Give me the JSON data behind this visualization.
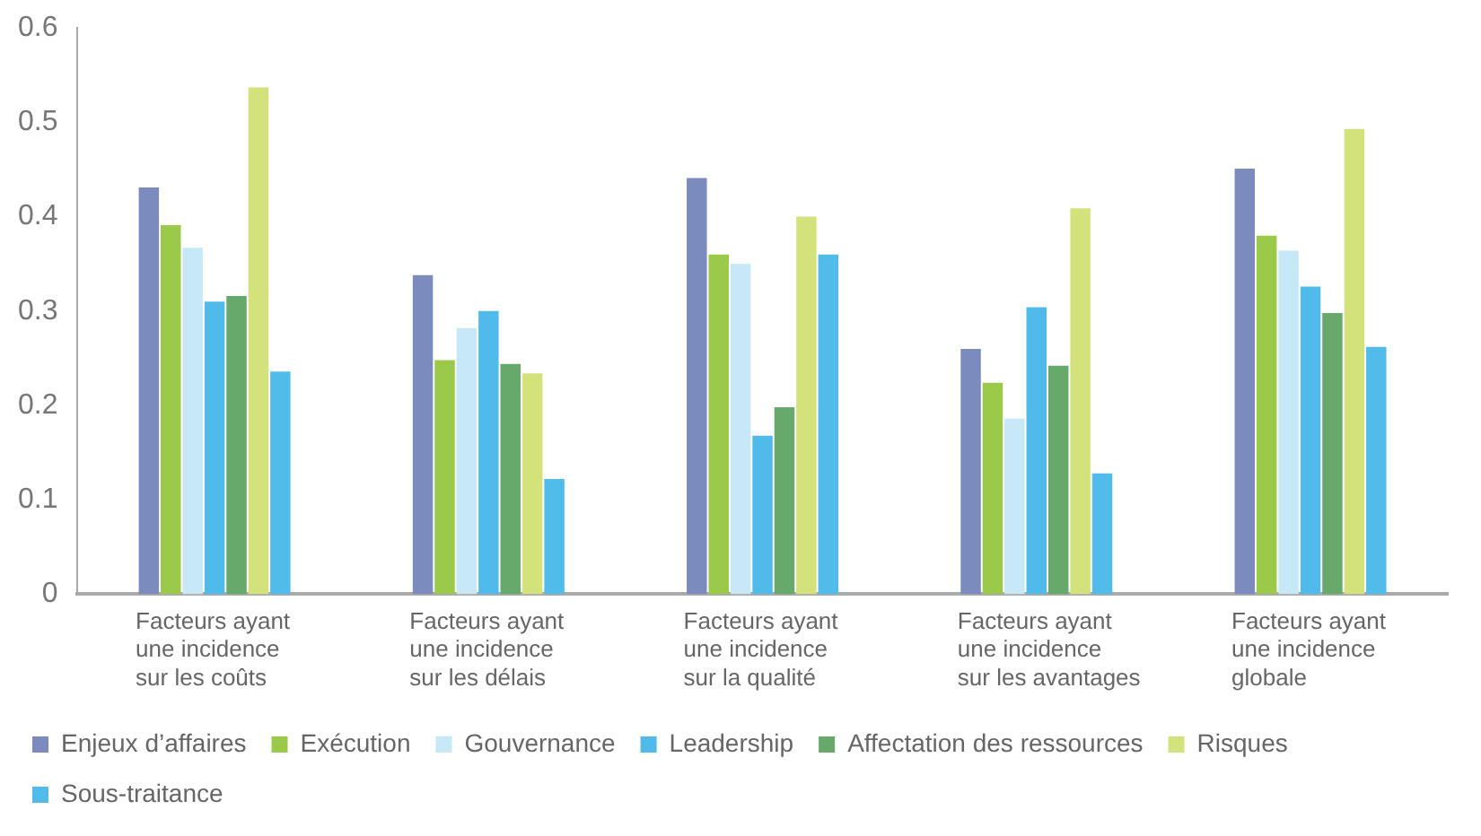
{
  "chart_data": {
    "type": "bar",
    "categories": [
      "Facteurs ayant\nune incidence\nsur les coûts",
      "Facteurs ayant\nune incidence\nsur les délais",
      "Facteurs ayant\nune incidence\nsur la qualité",
      "Facteurs ayant\nune incidence\nsur les avantages",
      "Facteurs ayant\nune incidence\nglobale"
    ],
    "series": [
      {
        "name": "Enjeux d’affaires",
        "color": "#7b8bbd",
        "values": [
          0.431,
          0.338,
          0.441,
          0.26,
          0.451
        ]
      },
      {
        "name": "Exécution",
        "color": "#9bc94a",
        "values": [
          0.391,
          0.248,
          0.36,
          0.224,
          0.38
        ]
      },
      {
        "name": "Gouvernance",
        "color": "#c6e8f7",
        "values": [
          0.367,
          0.282,
          0.35,
          0.186,
          0.364
        ]
      },
      {
        "name": "Leadership",
        "color": "#50bbea",
        "values": [
          0.31,
          0.3,
          0.168,
          0.304,
          0.326
        ]
      },
      {
        "name": "Affectation des ressources",
        "color": "#66a96a",
        "values": [
          0.316,
          0.244,
          0.198,
          0.242,
          0.298
        ]
      },
      {
        "name": "Risques",
        "color": "#d4e27c",
        "values": [
          0.537,
          0.234,
          0.4,
          0.409,
          0.493
        ]
      },
      {
        "name": "Sous-traitance",
        "color": "#51bcea",
        "values": [
          0.236,
          0.122,
          0.36,
          0.128,
          0.262
        ]
      }
    ],
    "ylim": [
      0,
      0.6
    ],
    "yticks": [
      0,
      0.1,
      0.2,
      0.3,
      0.4,
      0.5,
      0.6
    ],
    "grid": false,
    "legend": "bottom"
  }
}
